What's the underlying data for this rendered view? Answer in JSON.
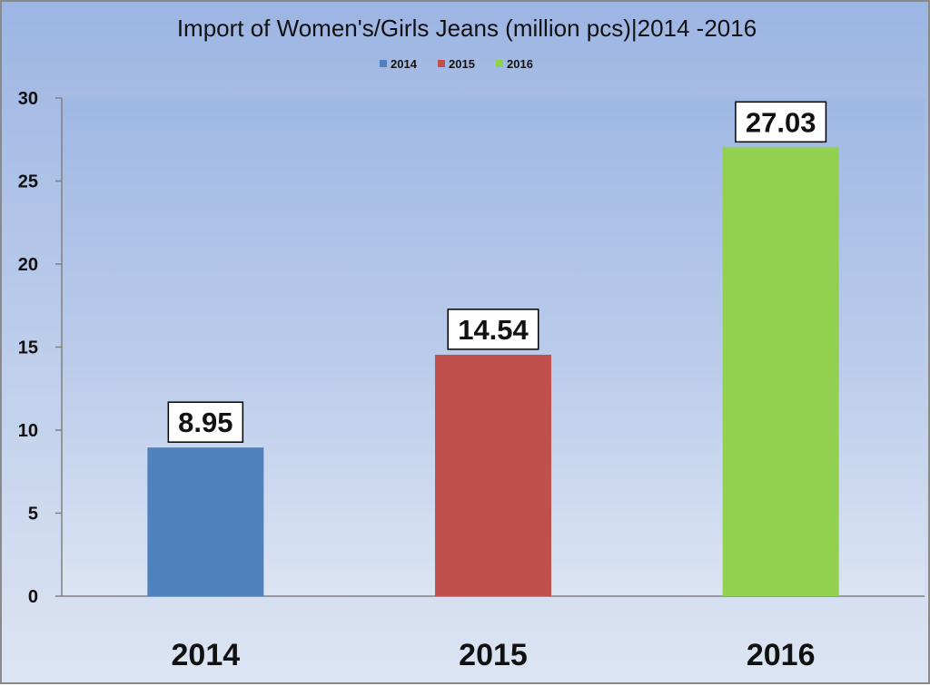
{
  "chart_data": {
    "type": "bar",
    "title": "Import of Women's/Girls Jeans (million pcs)|2014 -2016",
    "categories": [
      "2014",
      "2015",
      "2016"
    ],
    "values": [
      8.95,
      14.54,
      27.03
    ],
    "data_labels": [
      "8.95",
      "14.54",
      "27.03"
    ],
    "colors": [
      "#4f81bd",
      "#c0504d",
      "#92d050"
    ],
    "legend": {
      "position": "top",
      "entries": [
        "2014",
        "2015",
        "2016"
      ]
    },
    "ylim": [
      0,
      30
    ],
    "yticks": [
      0,
      5,
      10,
      15,
      20,
      25,
      30
    ],
    "xlabel": "",
    "ylabel": "",
    "grid": false
  }
}
